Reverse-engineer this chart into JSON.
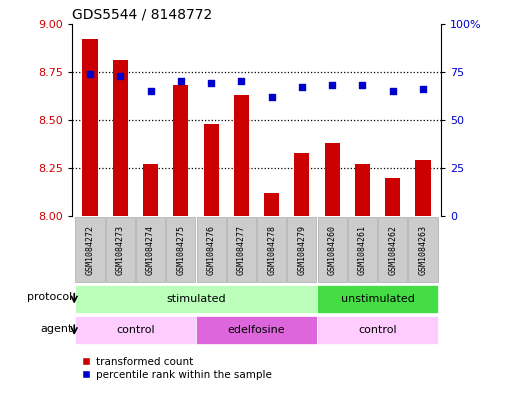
{
  "title": "GDS5544 / 8148772",
  "samples": [
    "GSM1084272",
    "GSM1084273",
    "GSM1084274",
    "GSM1084275",
    "GSM1084276",
    "GSM1084277",
    "GSM1084278",
    "GSM1084279",
    "GSM1084260",
    "GSM1084261",
    "GSM1084262",
    "GSM1084263"
  ],
  "red_values": [
    8.92,
    8.81,
    8.27,
    8.68,
    8.48,
    8.63,
    8.12,
    8.33,
    8.38,
    8.27,
    8.2,
    8.29
  ],
  "blue_values": [
    74,
    73,
    65,
    70,
    69,
    70,
    62,
    67,
    68,
    68,
    65,
    66
  ],
  "ylim_left": [
    8.0,
    9.0
  ],
  "ylim_right": [
    0,
    100
  ],
  "yticks_left": [
    8.0,
    8.25,
    8.5,
    8.75,
    9.0
  ],
  "yticks_right": [
    0,
    25,
    50,
    75,
    100
  ],
  "bar_color": "#cc0000",
  "dot_color": "#0000cc",
  "protocol_groups": [
    {
      "label": "stimulated",
      "start": 0,
      "end": 8,
      "color": "#bbffbb"
    },
    {
      "label": "unstimulated",
      "start": 8,
      "end": 12,
      "color": "#44dd44"
    }
  ],
  "agent_groups": [
    {
      "label": "control",
      "start": 0,
      "end": 4,
      "color": "#ffccff"
    },
    {
      "label": "edelfosine",
      "start": 4,
      "end": 8,
      "color": "#dd66dd"
    },
    {
      "label": "control",
      "start": 8,
      "end": 12,
      "color": "#ffccff"
    }
  ],
  "legend_red": "transformed count",
  "legend_blue": "percentile rank within the sample",
  "protocol_label": "protocol",
  "agent_label": "agent",
  "label_bg_color": "#cccccc",
  "label_edge_color": "#aaaaaa"
}
